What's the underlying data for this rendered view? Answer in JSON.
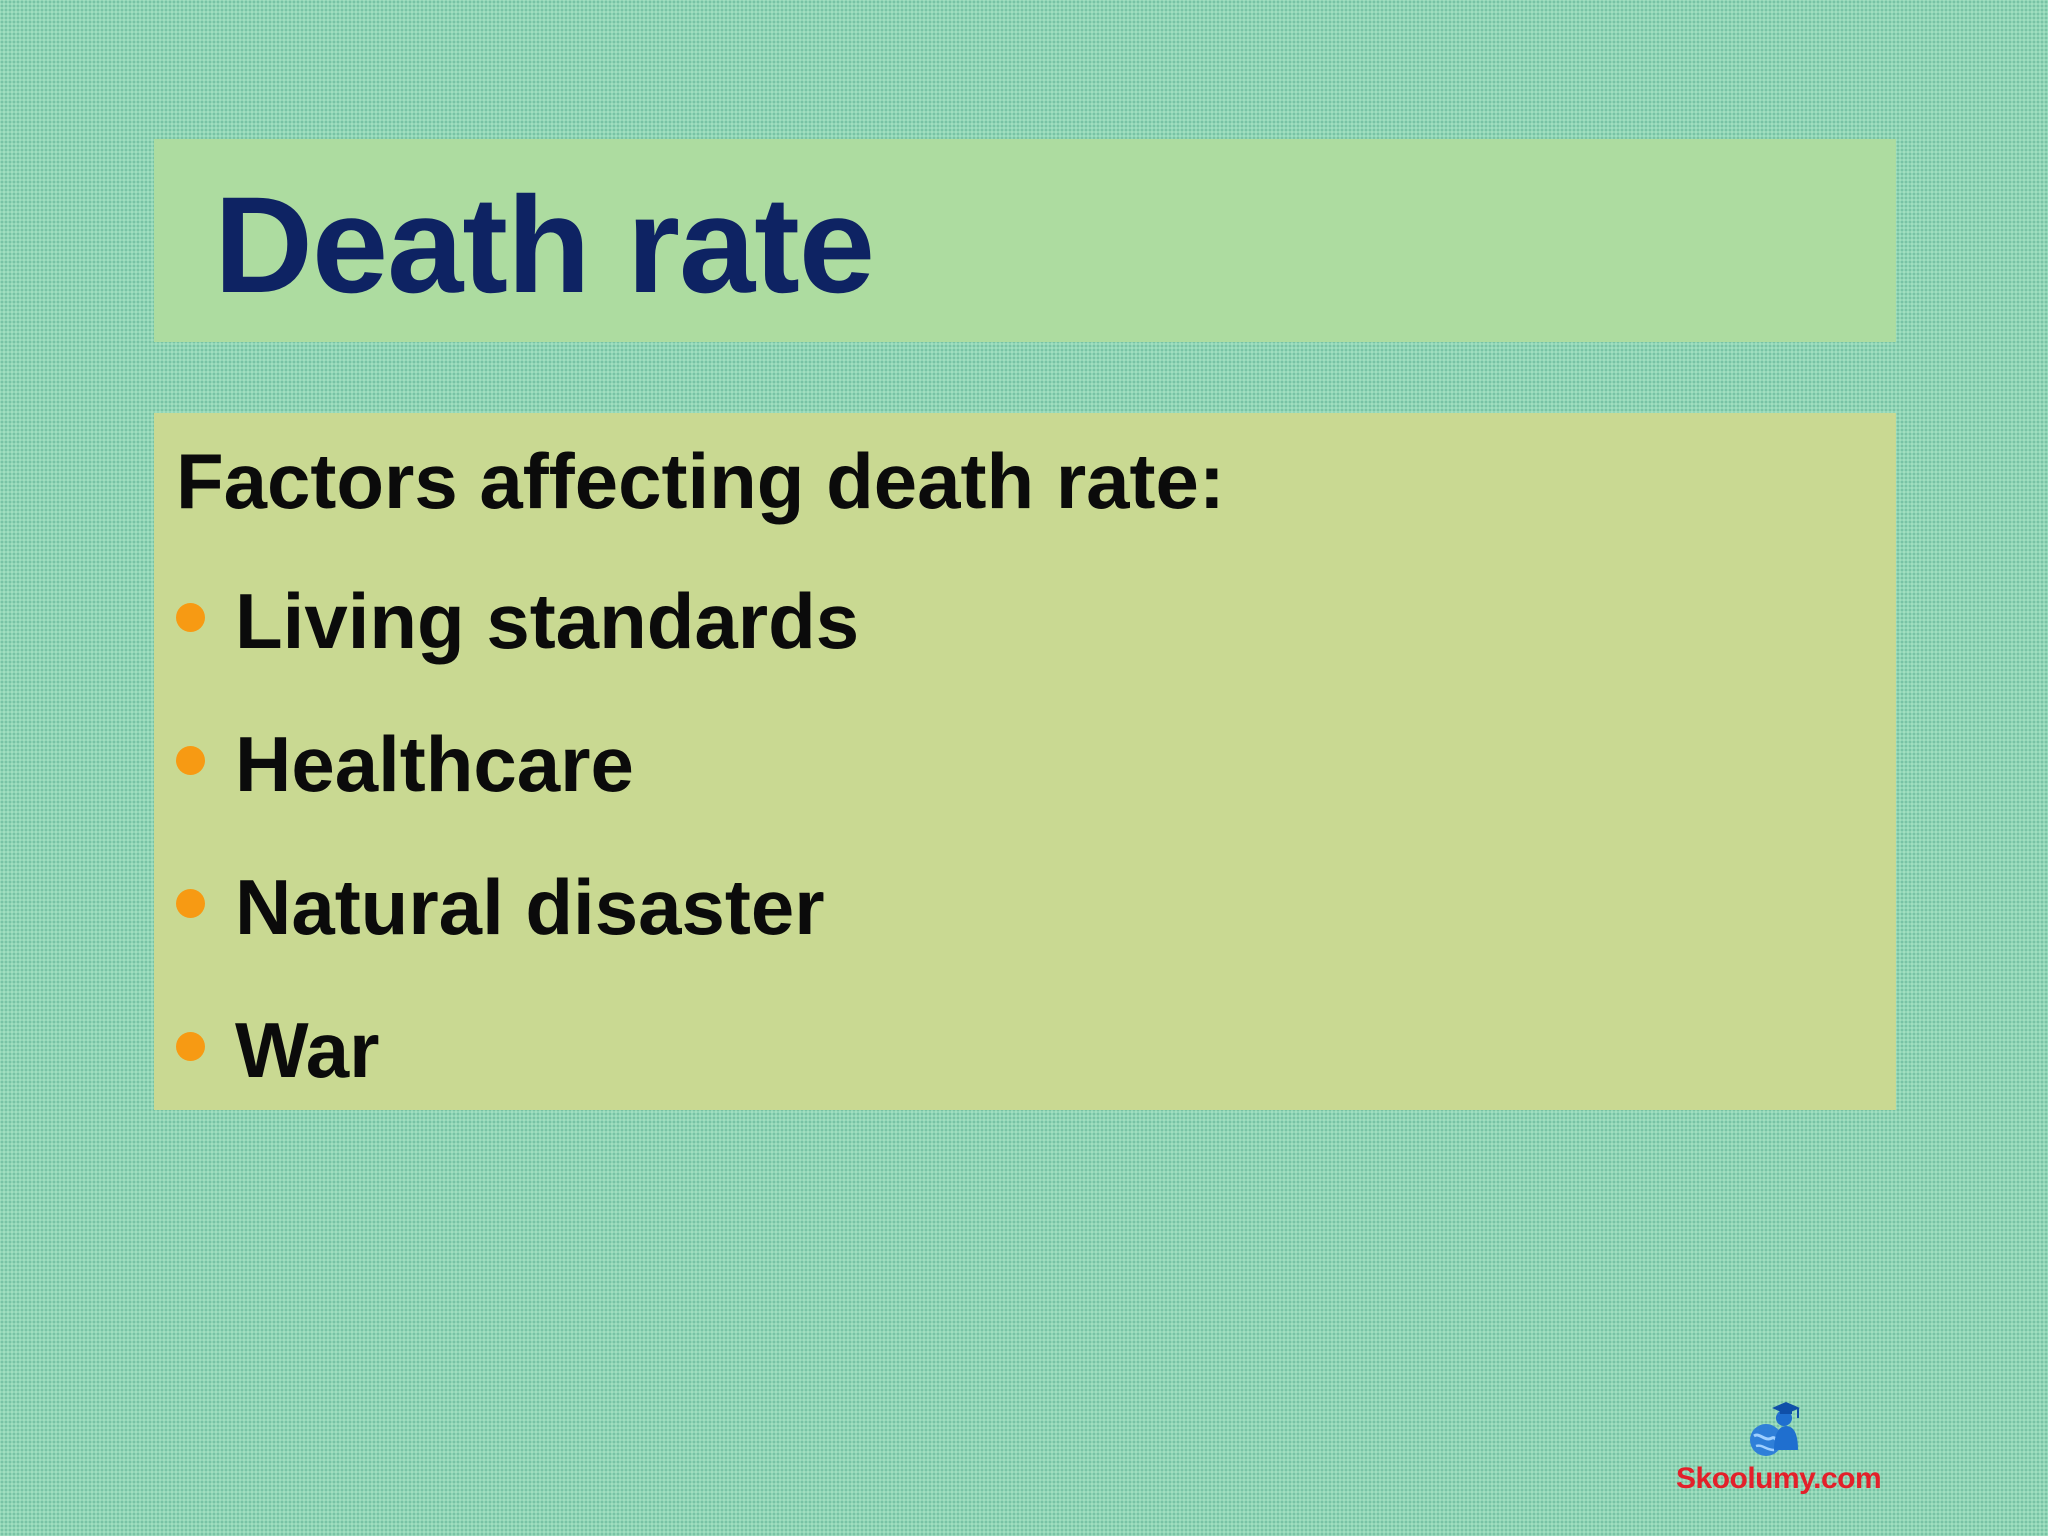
{
  "slide": {
    "title": "Death rate",
    "intro": "Factors affecting death rate:",
    "bullets": [
      {
        "label": "Living standards"
      },
      {
        "label": "Healthcare"
      },
      {
        "label": "Natural disaster"
      },
      {
        "label": "War"
      }
    ]
  },
  "watermark": {
    "text": "Skoolumy.com",
    "icon": "globe-graduate-icon"
  },
  "colors": {
    "background": "#90d6b6",
    "title_panel": "#addca0",
    "content_panel": "#c9d992",
    "title_text": "#0e2363",
    "body_text": "#0b0b0b",
    "bullet": "#f79a13",
    "watermark_text": "#e3202a",
    "watermark_icon": "#2f7fd8"
  }
}
